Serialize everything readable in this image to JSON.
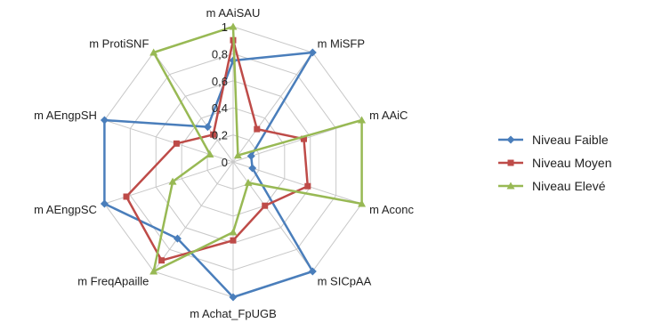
{
  "chart_data": {
    "type": "radar",
    "axes": [
      "m AAiSAU",
      "m MiSFP",
      "m AAiC",
      "m Aconc",
      "m SICpAA",
      "m Achat_FpUGB",
      "m FreqApaille",
      "m AEngpSC",
      "m AEngpSH",
      "m ProtiSNF"
    ],
    "ticks": [
      "0",
      "0,2",
      "0,4",
      "0,6",
      "0,8",
      "1"
    ],
    "range": [
      0,
      1
    ],
    "legend_position": "right",
    "series": [
      {
        "name": "Niveau Faible",
        "color": "#4a7ebb",
        "marker": "diamond",
        "values": [
          0.75,
          1.0,
          0.14,
          0.15,
          1.0,
          1.0,
          0.7,
          1.0,
          1.0,
          0.32
        ]
      },
      {
        "name": "Niveau Moyen",
        "color": "#be4b48",
        "marker": "square",
        "values": [
          0.9,
          0.3,
          0.55,
          0.58,
          0.4,
          0.58,
          0.9,
          0.83,
          0.44,
          0.25
        ]
      },
      {
        "name": "Niveau Elevé",
        "color": "#98b954",
        "marker": "triangle",
        "values": [
          1.0,
          0.06,
          1.0,
          1.0,
          0.19,
          0.52,
          1.0,
          0.47,
          0.18,
          1.0
        ]
      }
    ]
  }
}
